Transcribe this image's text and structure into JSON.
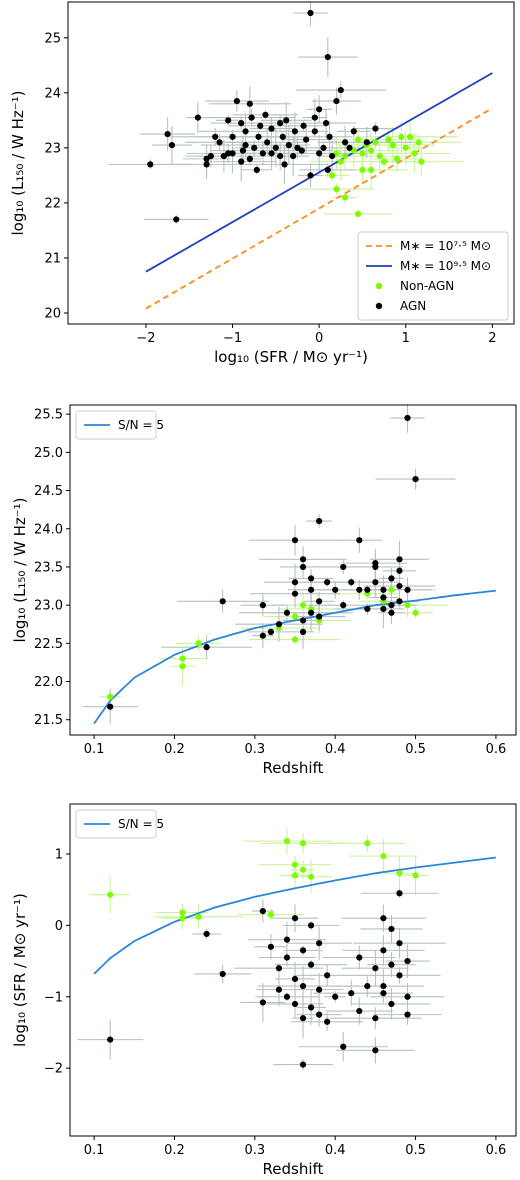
{
  "colors": {
    "agn": "#000000",
    "non_agn": "#7CFC00",
    "err_agn": "#b6c1c1",
    "err_non_agn": "#c9f29b",
    "line_blue": "#1f3fbf",
    "line_orange": "#ff8c1a",
    "curve_sn": "#2a86d6"
  },
  "chart_data": [
    {
      "type": "scatter",
      "xlabel": "log₁₀ (SFR / M⊙ yr⁻¹)",
      "ylabel": "log₁₀ (L₁₅₀ / W Hz⁻¹)",
      "xlim": [
        -2.9,
        2.25
      ],
      "ylim": [
        19.8,
        25.65
      ],
      "xticks": [
        -2,
        -1,
        0,
        1,
        2
      ],
      "yticks": [
        20,
        21,
        22,
        23,
        24,
        25
      ],
      "legend_position": "lower-right",
      "lines": [
        {
          "name": "M∗ = 10⁷·⁵ M⊙",
          "style": "dashed",
          "color": "#ff8c1a",
          "x": [
            -2,
            2
          ],
          "y": [
            20.08,
            23.72
          ]
        },
        {
          "name": "M∗ = 10⁹·⁵ M⊙",
          "style": "solid",
          "color": "#1f3fbf",
          "x": [
            -2,
            2
          ],
          "y": [
            20.75,
            24.36
          ]
        }
      ],
      "series": [
        {
          "name": "Non-AGN",
          "color": "#7CFC00",
          "points": [
            [
              0.15,
              22.5
            ],
            [
              0.2,
              22.25
            ],
            [
              0.25,
              22.75
            ],
            [
              0.3,
              22.85
            ],
            [
              0.4,
              22.95
            ],
            [
              0.45,
              23.15
            ],
            [
              0.5,
              22.9
            ],
            [
              0.55,
              23.05
            ],
            [
              0.6,
              22.95
            ],
            [
              0.6,
              22.6
            ],
            [
              0.65,
              23.1
            ],
            [
              0.7,
              22.85
            ],
            [
              0.75,
              22.75
            ],
            [
              0.8,
              23.15
            ],
            [
              0.85,
              23.05
            ],
            [
              0.9,
              22.8
            ],
            [
              0.95,
              23.2
            ],
            [
              1.0,
              23.0
            ],
            [
              1.05,
              23.2
            ],
            [
              1.1,
              22.9
            ],
            [
              1.15,
              23.1
            ],
            [
              1.18,
              22.75
            ],
            [
              0.3,
              22.1
            ],
            [
              0.45,
              21.8
            ],
            [
              0.5,
              22.6
            ],
            [
              0.2,
              22.9
            ]
          ]
        },
        {
          "name": "AGN",
          "color": "#000000",
          "points": [
            [
              -1.95,
              22.7
            ],
            [
              -1.75,
              23.25
            ],
            [
              -1.7,
              23.05
            ],
            [
              -1.65,
              21.7
            ],
            [
              -1.4,
              23.55
            ],
            [
              -1.3,
              22.8
            ],
            [
              -1.3,
              22.7
            ],
            [
              -1.25,
              22.85
            ],
            [
              -1.2,
              23.2
            ],
            [
              -1.15,
              23.1
            ],
            [
              -1.1,
              22.85
            ],
            [
              -1.05,
              23.5
            ],
            [
              -1.0,
              23.2
            ],
            [
              -1.0,
              22.9
            ],
            [
              -0.95,
              23.85
            ],
            [
              -0.9,
              23.45
            ],
            [
              -0.9,
              22.75
            ],
            [
              -0.88,
              22.95
            ],
            [
              -0.85,
              23.3
            ],
            [
              -0.85,
              23.05
            ],
            [
              -0.8,
              22.8
            ],
            [
              -0.8,
              23.8
            ],
            [
              -0.78,
              23.55
            ],
            [
              -0.75,
              23.0
            ],
            [
              -0.72,
              22.6
            ],
            [
              -0.7,
              23.2
            ],
            [
              -0.68,
              23.4
            ],
            [
              -0.65,
              22.9
            ],
            [
              -0.62,
              23.6
            ],
            [
              -0.6,
              23.1
            ],
            [
              -0.55,
              22.9
            ],
            [
              -0.55,
              23.35
            ],
            [
              -0.5,
              23.0
            ],
            [
              -0.45,
              23.45
            ],
            [
              -0.42,
              23.2
            ],
            [
              -0.4,
              22.7
            ],
            [
              -0.38,
              23.5
            ],
            [
              -0.35,
              23.05
            ],
            [
              -0.3,
              22.85
            ],
            [
              -0.28,
              23.3
            ],
            [
              -0.25,
              23.0
            ],
            [
              -0.2,
              22.95
            ],
            [
              -0.18,
              23.4
            ],
            [
              -0.15,
              23.15
            ],
            [
              -0.1,
              22.5
            ],
            [
              -0.05,
              23.3
            ],
            [
              0.0,
              22.9
            ],
            [
              0.0,
              23.7
            ],
            [
              0.05,
              23.0
            ],
            [
              0.08,
              23.45
            ],
            [
              0.1,
              22.6
            ],
            [
              0.12,
              23.2
            ],
            [
              0.15,
              22.85
            ],
            [
              0.2,
              23.85
            ],
            [
              0.25,
              24.05
            ],
            [
              0.3,
              23.1
            ],
            [
              0.35,
              23.0
            ],
            [
              0.4,
              23.3
            ],
            [
              0.55,
              23.1
            ],
            [
              0.65,
              23.35
            ],
            [
              -0.1,
              25.45
            ],
            [
              0.1,
              24.65
            ],
            [
              -0.05,
              23.55
            ],
            [
              -0.45,
              22.85
            ],
            [
              -1.05,
              22.9
            ]
          ]
        }
      ]
    },
    {
      "type": "scatter",
      "xlabel": "Redshift",
      "ylabel": "log₁₀ (L₁₅₀ / W Hz⁻¹)",
      "xlim": [
        0.07,
        0.625
      ],
      "ylim": [
        21.3,
        25.62
      ],
      "xticks": [
        0.1,
        0.2,
        0.3,
        0.4,
        0.5,
        0.6
      ],
      "yticks": [
        21.5,
        22.0,
        22.5,
        23.0,
        23.5,
        24.0,
        24.5,
        25.0,
        25.5
      ],
      "legend_position": "top-left",
      "lines": [
        {
          "name": "S/N = 5",
          "style": "solid",
          "color": "#2a86d6",
          "type": "curve",
          "x": [
            0.1,
            0.12,
            0.15,
            0.2,
            0.25,
            0.3,
            0.35,
            0.4,
            0.45,
            0.5,
            0.55,
            0.6
          ],
          "y": [
            21.45,
            21.75,
            22.05,
            22.35,
            22.55,
            22.7,
            22.8,
            22.9,
            23.0,
            23.06,
            23.13,
            23.19
          ]
        }
      ],
      "series": [
        {
          "name": "Non-AGN",
          "color": "#7CFC00",
          "points": [
            [
              0.12,
              21.8
            ],
            [
              0.21,
              22.2
            ],
            [
              0.21,
              22.3
            ],
            [
              0.23,
              22.5
            ],
            [
              0.35,
              22.55
            ],
            [
              0.35,
              22.85
            ],
            [
              0.36,
              23.0
            ],
            [
              0.37,
              22.95
            ],
            [
              0.38,
              22.8
            ],
            [
              0.44,
              23.15
            ],
            [
              0.46,
              23.05
            ],
            [
              0.47,
              23.2
            ],
            [
              0.49,
              23.0
            ],
            [
              0.5,
              22.9
            ],
            [
              0.33,
              22.7
            ]
          ]
        },
        {
          "name": "AGN",
          "color": "#000000",
          "points": [
            [
              0.12,
              21.67
            ],
            [
              0.24,
              22.45
            ],
            [
              0.26,
              23.05
            ],
            [
              0.31,
              22.6
            ],
            [
              0.31,
              23.0
            ],
            [
              0.32,
              22.65
            ],
            [
              0.33,
              22.75
            ],
            [
              0.34,
              22.9
            ],
            [
              0.35,
              23.15
            ],
            [
              0.35,
              23.3
            ],
            [
              0.35,
              23.85
            ],
            [
              0.36,
              23.5
            ],
            [
              0.36,
              23.6
            ],
            [
              0.36,
              22.65
            ],
            [
              0.36,
              22.8
            ],
            [
              0.37,
              22.9
            ],
            [
              0.37,
              23.2
            ],
            [
              0.37,
              23.35
            ],
            [
              0.38,
              22.85
            ],
            [
              0.38,
              23.05
            ],
            [
              0.38,
              24.1
            ],
            [
              0.39,
              23.3
            ],
            [
              0.4,
              23.2
            ],
            [
              0.41,
              23.0
            ],
            [
              0.41,
              23.5
            ],
            [
              0.42,
              23.3
            ],
            [
              0.43,
              23.85
            ],
            [
              0.43,
              23.2
            ],
            [
              0.44,
              22.95
            ],
            [
              0.45,
              23.55
            ],
            [
              0.45,
              23.3
            ],
            [
              0.46,
              23.1
            ],
            [
              0.46,
              23.2
            ],
            [
              0.47,
              23.0
            ],
            [
              0.47,
              23.35
            ],
            [
              0.47,
              22.9
            ],
            [
              0.48,
              23.05
            ],
            [
              0.48,
              23.25
            ],
            [
              0.48,
              23.45
            ],
            [
              0.48,
              23.6
            ],
            [
              0.49,
              23.2
            ],
            [
              0.49,
              25.45
            ],
            [
              0.5,
              24.65
            ],
            [
              0.46,
              22.95
            ],
            [
              0.44,
              23.2
            ],
            [
              0.45,
              23.5
            ]
          ]
        }
      ]
    },
    {
      "type": "scatter",
      "xlabel": "Redshift",
      "ylabel": "log₁₀ (SFR / M⊙ yr⁻¹)",
      "xlim": [
        0.07,
        0.625
      ],
      "ylim": [
        -2.95,
        1.7
      ],
      "xticks": [
        0.1,
        0.2,
        0.3,
        0.4,
        0.5,
        0.6
      ],
      "yticks": [
        -2,
        -1,
        0,
        1
      ],
      "legend_position": "top-left",
      "lines": [
        {
          "name": "S/N = 5",
          "style": "solid",
          "color": "#2a86d6",
          "type": "curve",
          "x": [
            0.1,
            0.12,
            0.15,
            0.2,
            0.25,
            0.3,
            0.35,
            0.4,
            0.45,
            0.5,
            0.55,
            0.6
          ],
          "y": [
            -0.68,
            -0.46,
            -0.22,
            0.05,
            0.25,
            0.4,
            0.52,
            0.63,
            0.73,
            0.81,
            0.88,
            0.95
          ]
        }
      ],
      "series": [
        {
          "name": "Non-AGN",
          "color": "#7CFC00",
          "points": [
            [
              0.12,
              0.43
            ],
            [
              0.21,
              0.18
            ],
            [
              0.21,
              0.1
            ],
            [
              0.23,
              0.12
            ],
            [
              0.32,
              0.15
            ],
            [
              0.34,
              1.18
            ],
            [
              0.35,
              0.85
            ],
            [
              0.35,
              0.7
            ],
            [
              0.36,
              1.15
            ],
            [
              0.36,
              0.78
            ],
            [
              0.37,
              0.68
            ],
            [
              0.44,
              1.15
            ],
            [
              0.46,
              0.97
            ],
            [
              0.48,
              0.73
            ],
            [
              0.5,
              0.7
            ]
          ]
        },
        {
          "name": "AGN",
          "color": "#000000",
          "points": [
            [
              0.12,
              -1.6
            ],
            [
              0.24,
              -0.12
            ],
            [
              0.26,
              -0.68
            ],
            [
              0.31,
              0.2
            ],
            [
              0.31,
              -1.08
            ],
            [
              0.32,
              -0.3
            ],
            [
              0.33,
              -0.6
            ],
            [
              0.33,
              -0.9
            ],
            [
              0.34,
              -0.2
            ],
            [
              0.34,
              -0.45
            ],
            [
              0.34,
              -1.0
            ],
            [
              0.35,
              0.1
            ],
            [
              0.35,
              -0.75
            ],
            [
              0.35,
              -1.1
            ],
            [
              0.36,
              -0.35
            ],
            [
              0.36,
              -0.85
            ],
            [
              0.36,
              -1.3
            ],
            [
              0.36,
              -1.95
            ],
            [
              0.37,
              0.0
            ],
            [
              0.37,
              -0.55
            ],
            [
              0.37,
              -1.15
            ],
            [
              0.38,
              -0.25
            ],
            [
              0.38,
              -0.9
            ],
            [
              0.38,
              -1.25
            ],
            [
              0.39,
              -0.7
            ],
            [
              0.39,
              -1.35
            ],
            [
              0.4,
              -1.0
            ],
            [
              0.41,
              -1.7
            ],
            [
              0.42,
              -0.95
            ],
            [
              0.43,
              -1.2
            ],
            [
              0.43,
              -0.45
            ],
            [
              0.44,
              -0.85
            ],
            [
              0.45,
              -1.75
            ],
            [
              0.45,
              -0.6
            ],
            [
              0.45,
              -1.3
            ],
            [
              0.46,
              0.1
            ],
            [
              0.46,
              -0.35
            ],
            [
              0.46,
              -0.95
            ],
            [
              0.47,
              -0.55
            ],
            [
              0.47,
              -1.1
            ],
            [
              0.47,
              -0.05
            ],
            [
              0.48,
              -0.7
            ],
            [
              0.48,
              -0.25
            ],
            [
              0.48,
              0.45
            ],
            [
              0.49,
              -1.0
            ],
            [
              0.49,
              -0.5
            ],
            [
              0.49,
              -1.25
            ],
            [
              0.46,
              -0.85
            ]
          ]
        }
      ]
    }
  ]
}
